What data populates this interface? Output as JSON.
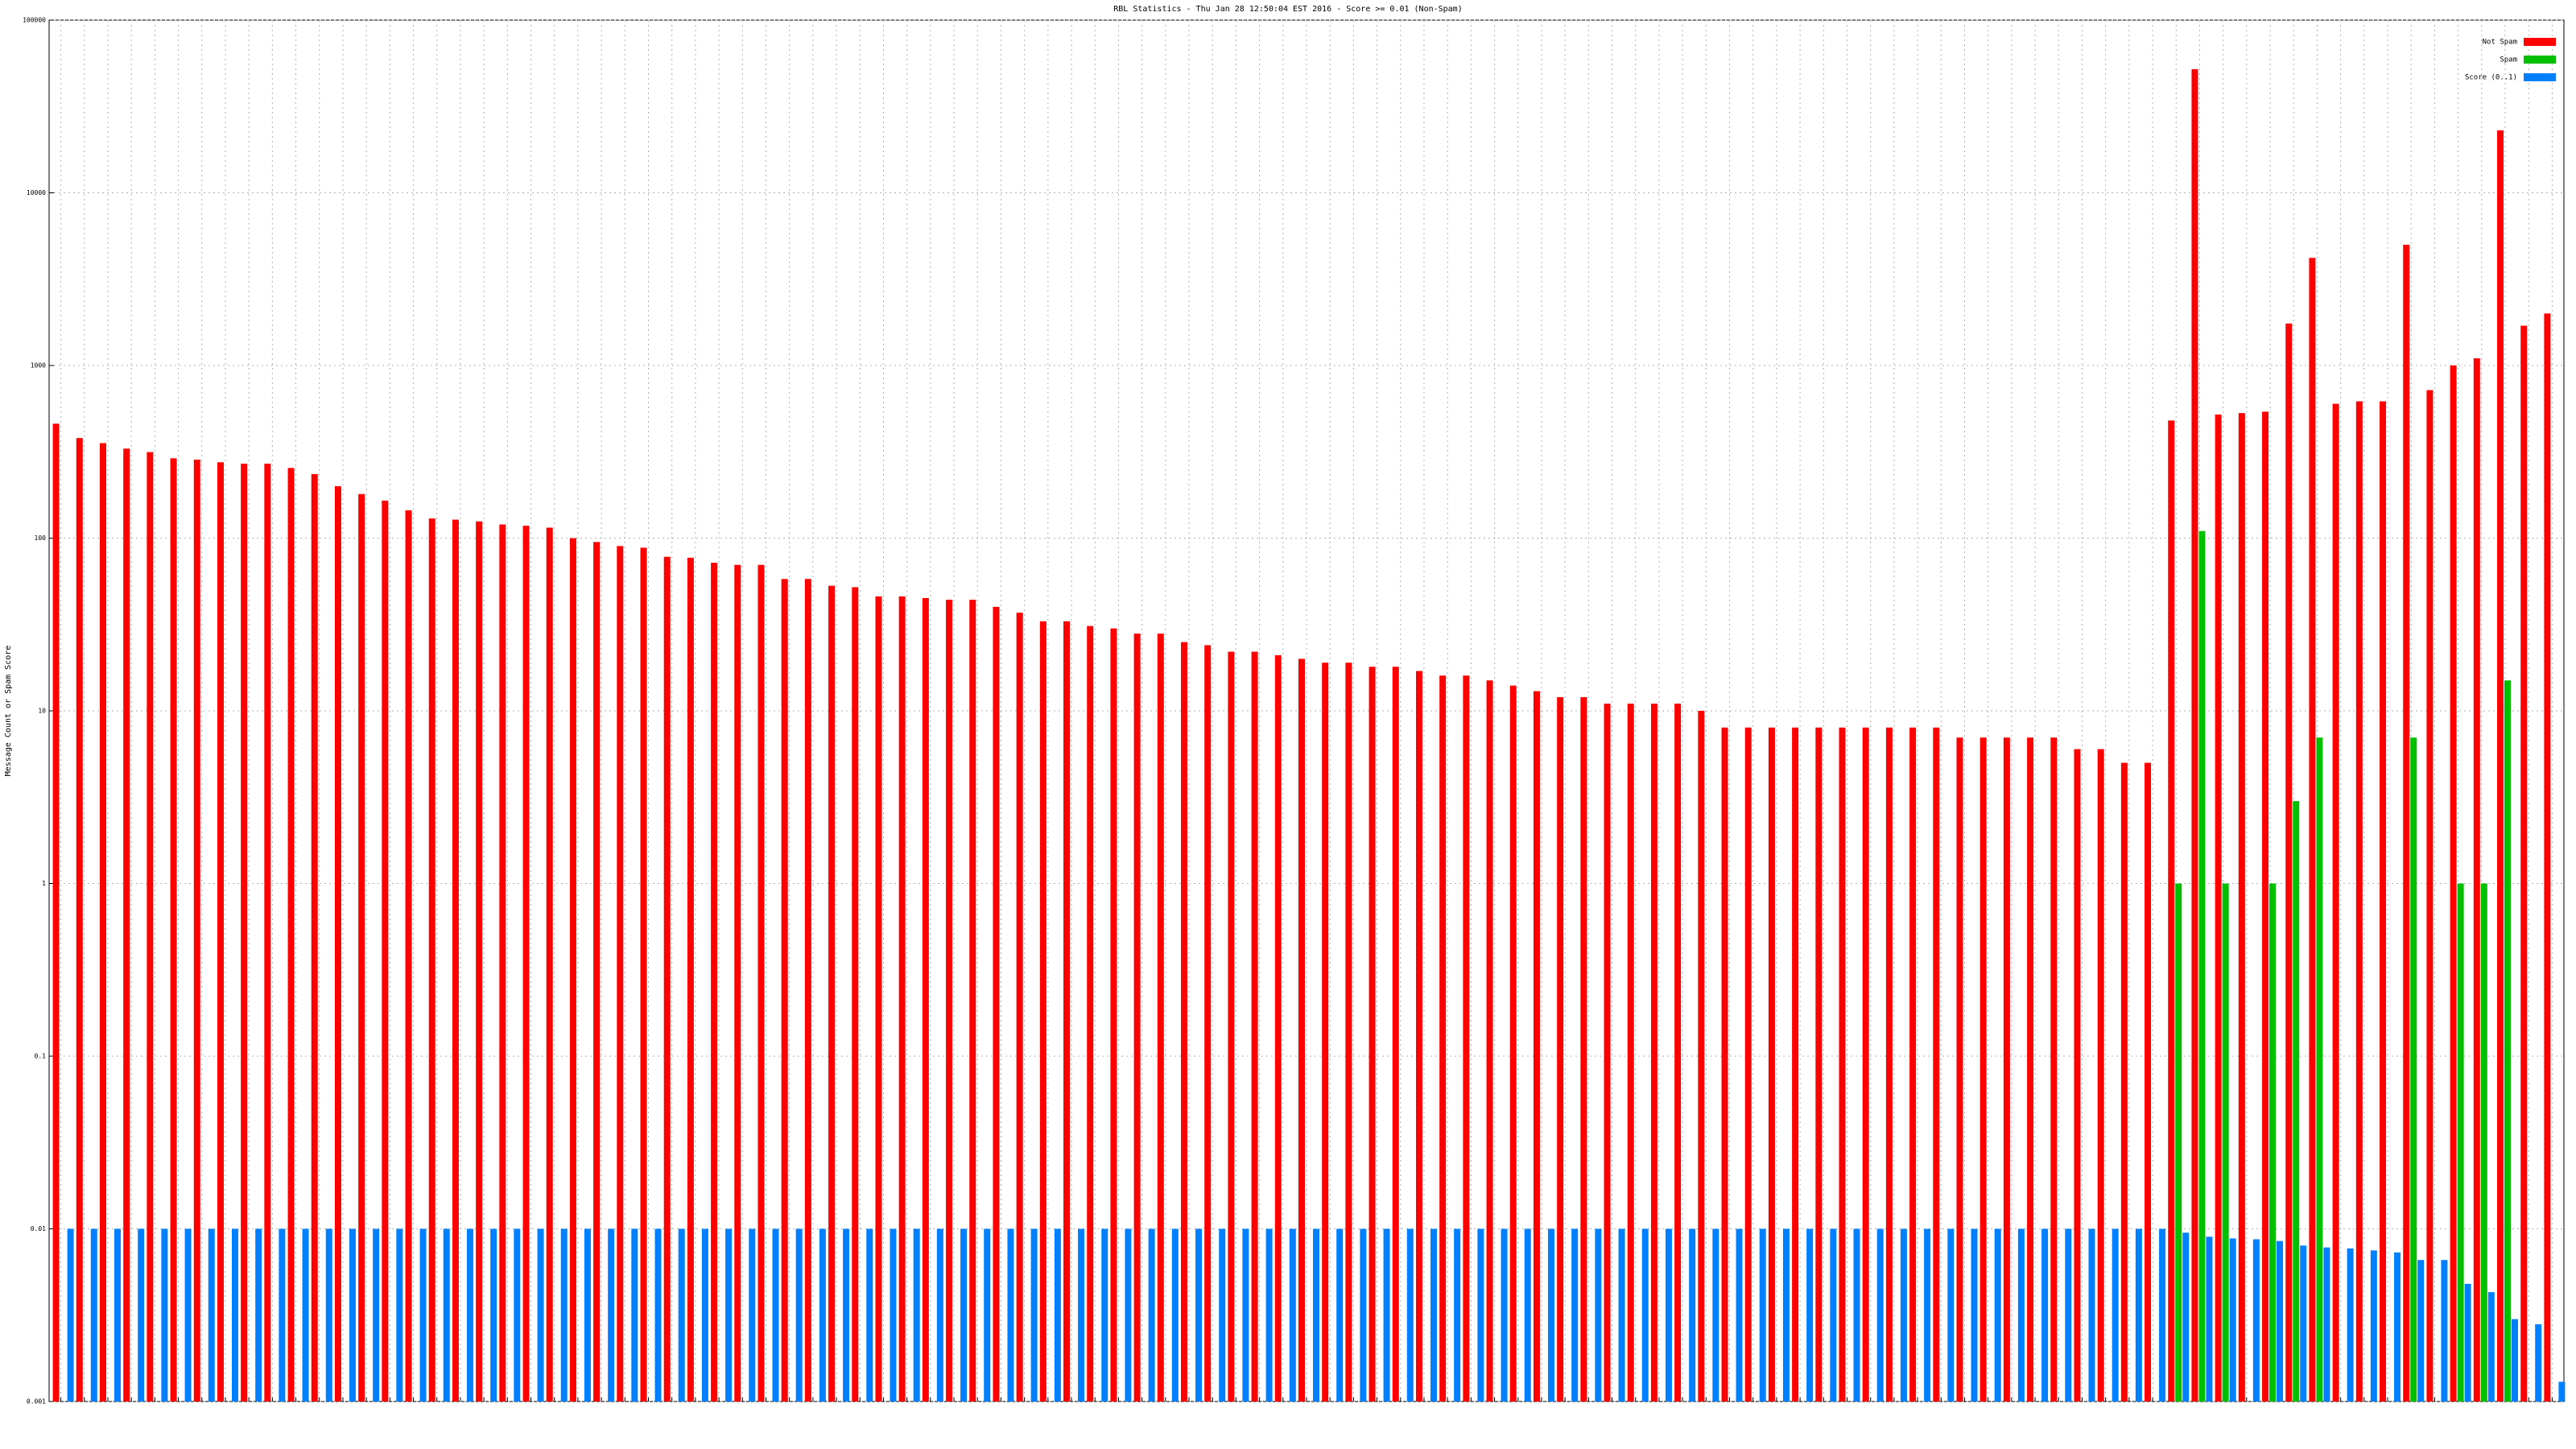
{
  "chart_data": {
    "type": "bar",
    "title": "RBL Statistics - Thu Jan 28 12:50:04 EST 2016 - Score >= 0.01 (Non-Spam)",
    "ylabel": "Message Count or Spam Score",
    "log_scale": true,
    "grid": true,
    "legend": "top-right",
    "ylim": [
      0.001,
      100000
    ],
    "yticks": [
      0.001,
      0.01,
      0.1,
      1,
      10,
      100,
      1000,
      10000,
      100000
    ],
    "categories": [
      null,
      null,
      null,
      null,
      null,
      null,
      null,
      null,
      null,
      null,
      null,
      null,
      null,
      null,
      null,
      null,
      null,
      null,
      null,
      null,
      null,
      null,
      null,
      null,
      null,
      null,
      null,
      null,
      null,
      null,
      null,
      null,
      null,
      null,
      null,
      null,
      null,
      null,
      null,
      null,
      null,
      null,
      null,
      null,
      null,
      null,
      null,
      null,
      null,
      null,
      null,
      null,
      null,
      null,
      null,
      null,
      null,
      null,
      null,
      null,
      null,
      null,
      null,
      null,
      null,
      null,
      null,
      null,
      null,
      null,
      null,
      null,
      null,
      null,
      null,
      null,
      null,
      null,
      null,
      null,
      null,
      null,
      null,
      null,
      null,
      null,
      null,
      null,
      null,
      null,
      null,
      null,
      null,
      null,
      null,
      null,
      null,
      null,
      null,
      null,
      null,
      null,
      null,
      null,
      null,
      null,
      null
    ],
    "series": [
      {
        "name": "Not Spam",
        "color": "#ff0000",
        "values": [
          460,
          380,
          355,
          330,
          315,
          290,
          285,
          275,
          270,
          270,
          255,
          235,
          200,
          180,
          165,
          145,
          130,
          128,
          125,
          120,
          118,
          115,
          100,
          95,
          90,
          88,
          78,
          77,
          72,
          70,
          70,
          58,
          58,
          53,
          52,
          46,
          46,
          45,
          44,
          44,
          40,
          37,
          33,
          33,
          31,
          30,
          28,
          28,
          25,
          24,
          22,
          22,
          21,
          20,
          19,
          19,
          18,
          18,
          17,
          16,
          16,
          15,
          14,
          13,
          12,
          12,
          11,
          11,
          11,
          11,
          10,
          8,
          8,
          8,
          8,
          8,
          8,
          8,
          8,
          8,
          8,
          7,
          7,
          7,
          7,
          7,
          6,
          6,
          5,
          5,
          480,
          52000,
          520,
          530,
          540,
          1750,
          4200,
          600,
          620,
          620,
          5000,
          720,
          1000,
          1100,
          23000,
          1700,
          2000
        ]
      },
      {
        "name": "Spam",
        "color": "#00c000",
        "values": [
          0,
          0,
          0,
          0,
          0,
          0,
          0,
          0,
          0,
          0,
          0,
          0,
          0,
          0,
          0,
          0,
          0,
          0,
          0,
          0,
          0,
          0,
          0,
          0,
          0,
          0,
          0,
          0,
          0,
          0,
          0,
          0,
          0,
          0,
          0,
          0,
          0,
          0,
          0,
          0,
          0,
          0,
          0,
          0,
          0,
          0,
          0,
          0,
          0,
          0,
          0,
          0,
          0,
          0,
          0,
          0,
          0,
          0,
          0,
          0,
          0,
          0,
          0,
          0,
          0,
          0,
          0,
          0,
          0,
          0,
          0,
          0,
          0,
          0,
          0,
          0,
          0,
          0,
          0,
          0,
          0,
          0,
          0,
          0,
          0,
          0,
          0,
          0,
          0,
          0,
          1,
          110,
          1,
          0,
          1,
          3,
          7,
          0,
          0,
          0,
          7,
          0,
          1,
          1,
          15,
          0,
          0
        ]
      },
      {
        "name": "Score (0..1)",
        "color": "#0080ff",
        "values": [
          0.01,
          0.01,
          0.01,
          0.01,
          0.01,
          0.01,
          0.01,
          0.01,
          0.01,
          0.01,
          0.01,
          0.01,
          0.01,
          0.01,
          0.01,
          0.01,
          0.01,
          0.01,
          0.01,
          0.01,
          0.01,
          0.01,
          0.01,
          0.01,
          0.01,
          0.01,
          0.01,
          0.01,
          0.01,
          0.01,
          0.01,
          0.01,
          0.01,
          0.01,
          0.01,
          0.01,
          0.01,
          0.01,
          0.01,
          0.01,
          0.01,
          0.01,
          0.01,
          0.01,
          0.01,
          0.01,
          0.01,
          0.01,
          0.01,
          0.01,
          0.01,
          0.01,
          0.01,
          0.01,
          0.01,
          0.01,
          0.01,
          0.01,
          0.01,
          0.01,
          0.01,
          0.01,
          0.01,
          0.01,
          0.01,
          0.01,
          0.01,
          0.01,
          0.01,
          0.01,
          0.01,
          0.01,
          0.01,
          0.01,
          0.01,
          0.01,
          0.01,
          0.01,
          0.01,
          0.01,
          0.01,
          0.01,
          0.01,
          0.01,
          0.01,
          0.01,
          0.01,
          0.01,
          0.01,
          0.01,
          0.0095,
          0.009,
          0.0088,
          0.0087,
          0.0085,
          0.008,
          0.0078,
          0.0077,
          0.0075,
          0.0073,
          0.0066,
          0.0066,
          0.0048,
          0.0043,
          0.003,
          0.0028,
          0.0013
        ]
      }
    ]
  }
}
